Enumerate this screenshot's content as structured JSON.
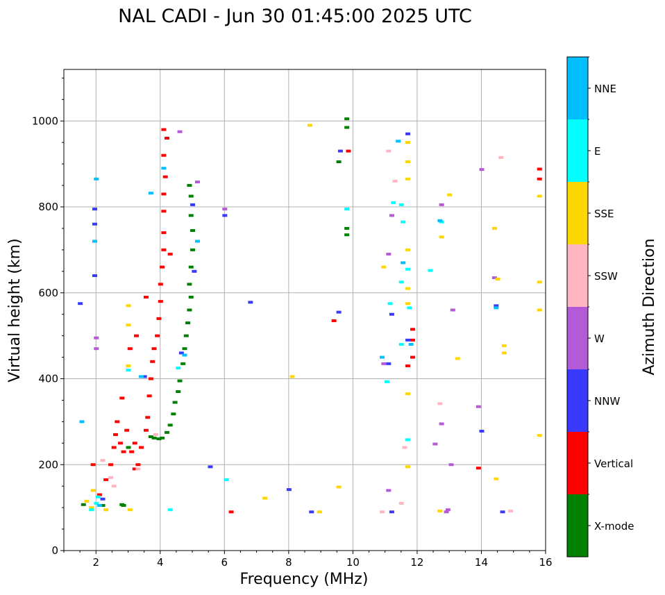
{
  "chart_data": {
    "type": "scatter",
    "title": "NAL CADI - Jun 30 01:45:00 2025 UTC",
    "xlabel": "Frequency (MHz)",
    "ylabel": "Virtual height (km)",
    "xlim": [
      1,
      16
    ],
    "ylim": [
      0,
      1120
    ],
    "xticks": [
      2,
      4,
      6,
      8,
      10,
      12,
      14,
      16
    ],
    "yticks": [
      0,
      200,
      400,
      600,
      800,
      1000
    ],
    "grid": true,
    "colorbar": {
      "label": "Azimuth Direction",
      "categories": [
        {
          "name": "X-mode",
          "color": "#008000"
        },
        {
          "name": "Vertical",
          "color": "#ff0000"
        },
        {
          "name": "NNW",
          "color": "#3a3aff"
        },
        {
          "name": "W",
          "color": "#b45ad6"
        },
        {
          "name": "SSW",
          "color": "#ffb6c1"
        },
        {
          "name": "SSE",
          "color": "#ffd700"
        },
        {
          "name": "E",
          "color": "#00ffff"
        },
        {
          "name": "NNE",
          "color": "#00bfff"
        }
      ]
    },
    "series": [
      {
        "name": "X-mode",
        "points": [
          [
            1.6,
            107
          ],
          [
            2.2,
            105
          ],
          [
            2.8,
            107
          ],
          [
            2.85,
            105
          ],
          [
            3.7,
            265
          ],
          [
            3.8,
            262
          ],
          [
            3.95,
            260
          ],
          [
            4.05,
            262
          ],
          [
            4.2,
            275
          ],
          [
            4.3,
            292
          ],
          [
            4.4,
            318
          ],
          [
            4.45,
            345
          ],
          [
            4.55,
            370
          ],
          [
            4.6,
            395
          ],
          [
            4.7,
            435
          ],
          [
            4.75,
            470
          ],
          [
            4.8,
            500
          ],
          [
            4.85,
            530
          ],
          [
            4.9,
            560
          ],
          [
            4.95,
            590
          ],
          [
            4.9,
            620
          ],
          [
            4.95,
            660
          ],
          [
            5.0,
            700
          ],
          [
            5.0,
            745
          ],
          [
            4.95,
            780
          ],
          [
            4.95,
            825
          ],
          [
            4.9,
            850
          ],
          [
            3.0,
            240
          ],
          [
            9.8,
            735
          ],
          [
            9.8,
            750
          ],
          [
            9.8,
            985
          ],
          [
            9.8,
            1005
          ],
          [
            9.55,
            905
          ]
        ]
      },
      {
        "name": "Vertical",
        "points": [
          [
            1.9,
            200
          ],
          [
            2.1,
            130
          ],
          [
            2.3,
            165
          ],
          [
            2.45,
            200
          ],
          [
            2.55,
            240
          ],
          [
            2.6,
            270
          ],
          [
            2.65,
            300
          ],
          [
            2.75,
            250
          ],
          [
            2.85,
            230
          ],
          [
            2.95,
            280
          ],
          [
            3.1,
            230
          ],
          [
            3.2,
            250
          ],
          [
            3.3,
            200
          ],
          [
            3.4,
            240
          ],
          [
            3.55,
            280
          ],
          [
            3.6,
            310
          ],
          [
            3.65,
            360
          ],
          [
            3.7,
            400
          ],
          [
            3.75,
            440
          ],
          [
            3.8,
            470
          ],
          [
            3.9,
            500
          ],
          [
            3.95,
            540
          ],
          [
            4.0,
            580
          ],
          [
            4.0,
            620
          ],
          [
            4.05,
            660
          ],
          [
            4.1,
            700
          ],
          [
            4.3,
            690
          ],
          [
            4.1,
            740
          ],
          [
            4.1,
            790
          ],
          [
            4.1,
            830
          ],
          [
            4.15,
            870
          ],
          [
            4.1,
            920
          ],
          [
            4.1,
            980
          ],
          [
            4.2,
            960
          ],
          [
            3.55,
            590
          ],
          [
            3.25,
            500
          ],
          [
            2.8,
            355
          ],
          [
            3.2,
            190
          ],
          [
            3.05,
            470
          ],
          [
            11.85,
            450
          ],
          [
            11.85,
            490
          ],
          [
            11.85,
            515
          ],
          [
            9.4,
            535
          ],
          [
            9.85,
            930
          ],
          [
            15.8,
            865
          ],
          [
            15.8,
            888
          ],
          [
            6.2,
            90
          ],
          [
            13.9,
            192
          ],
          [
            11.7,
            430
          ]
        ]
      },
      {
        "name": "NNW",
        "points": [
          [
            1.5,
            575
          ],
          [
            1.95,
            640
          ],
          [
            1.95,
            760
          ],
          [
            1.95,
            795
          ],
          [
            2.2,
            120
          ],
          [
            3.5,
            405
          ],
          [
            4.65,
            460
          ],
          [
            5.05,
            650
          ],
          [
            5.0,
            805
          ],
          [
            5.55,
            195
          ],
          [
            6.0,
            780
          ],
          [
            6.8,
            578
          ],
          [
            8.0,
            142
          ],
          [
            8.7,
            90
          ],
          [
            9.55,
            555
          ],
          [
            9.6,
            930
          ],
          [
            11.2,
            550
          ],
          [
            11.7,
            490
          ],
          [
            11.7,
            970
          ],
          [
            11.2,
            90
          ],
          [
            14.0,
            278
          ],
          [
            14.65,
            90
          ],
          [
            14.45,
            570
          ],
          [
            11.1,
            435
          ]
        ]
      },
      {
        "name": "W",
        "points": [
          [
            2.0,
            495
          ],
          [
            2.0,
            470
          ],
          [
            4.6,
            975
          ],
          [
            5.15,
            858
          ],
          [
            6.0,
            795
          ],
          [
            10.95,
            435
          ],
          [
            11.1,
            690
          ],
          [
            11.2,
            780
          ],
          [
            12.55,
            248
          ],
          [
            12.75,
            295
          ],
          [
            12.75,
            805
          ],
          [
            12.9,
            90
          ],
          [
            12.95,
            95
          ],
          [
            13.05,
            200
          ],
          [
            13.9,
            335
          ],
          [
            14.4,
            635
          ],
          [
            14.0,
            887
          ],
          [
            11.1,
            140
          ],
          [
            13.1,
            560
          ]
        ]
      },
      {
        "name": "SSW",
        "points": [
          [
            2.2,
            210
          ],
          [
            2.45,
            170
          ],
          [
            2.55,
            150
          ],
          [
            3.3,
            190
          ],
          [
            3.85,
            270
          ],
          [
            11.1,
            930
          ],
          [
            11.3,
            860
          ],
          [
            12.7,
            342
          ],
          [
            14.9,
            92
          ],
          [
            14.6,
            915
          ],
          [
            10.9,
            90
          ],
          [
            11.5,
            110
          ],
          [
            11.6,
            240
          ]
        ]
      },
      {
        "name": "SSE",
        "points": [
          [
            1.7,
            115
          ],
          [
            1.85,
            100
          ],
          [
            1.9,
            140
          ],
          [
            2.3,
            95
          ],
          [
            3.0,
            570
          ],
          [
            3.0,
            525
          ],
          [
            3.0,
            430
          ],
          [
            3.05,
            95
          ],
          [
            7.25,
            122
          ],
          [
            8.1,
            405
          ],
          [
            8.65,
            990
          ],
          [
            8.95,
            90
          ],
          [
            9.55,
            148
          ],
          [
            10.95,
            660
          ],
          [
            11.7,
            195
          ],
          [
            11.7,
            365
          ],
          [
            11.7,
            700
          ],
          [
            11.7,
            865
          ],
          [
            11.7,
            905
          ],
          [
            11.7,
            950
          ],
          [
            12.75,
            730
          ],
          [
            12.7,
            92
          ],
          [
            13.0,
            828
          ],
          [
            13.25,
            447
          ],
          [
            14.4,
            750
          ],
          [
            14.45,
            167
          ],
          [
            14.5,
            632
          ],
          [
            14.7,
            460
          ],
          [
            14.7,
            477
          ],
          [
            15.8,
            825
          ],
          [
            15.8,
            625
          ],
          [
            15.8,
            560
          ],
          [
            15.8,
            268
          ],
          [
            11.7,
            610
          ],
          [
            11.7,
            575
          ]
        ]
      },
      {
        "name": "E",
        "points": [
          [
            1.85,
            95
          ],
          [
            2.0,
            110
          ],
          [
            2.05,
            125
          ],
          [
            3.0,
            420
          ],
          [
            4.3,
            95
          ],
          [
            4.55,
            425
          ],
          [
            6.05,
            165
          ],
          [
            11.25,
            810
          ],
          [
            11.5,
            805
          ],
          [
            11.55,
            765
          ],
          [
            11.7,
            655
          ],
          [
            11.75,
            565
          ],
          [
            11.5,
            480
          ],
          [
            11.15,
            575
          ],
          [
            12.4,
            652
          ],
          [
            12.75,
            765
          ],
          [
            9.8,
            795
          ],
          [
            11.7,
            258
          ],
          [
            11.05,
            393
          ],
          [
            11.5,
            625
          ]
        ]
      },
      {
        "name": "NNE",
        "points": [
          [
            1.55,
            300
          ],
          [
            1.95,
            720
          ],
          [
            2.0,
            865
          ],
          [
            2.1,
            105
          ],
          [
            3.4,
            405
          ],
          [
            3.7,
            832
          ],
          [
            4.1,
            890
          ],
          [
            4.75,
            455
          ],
          [
            5.15,
            720
          ],
          [
            10.9,
            450
          ],
          [
            11.4,
            953
          ],
          [
            11.8,
            480
          ],
          [
            12.7,
            768
          ],
          [
            14.45,
            565
          ],
          [
            11.55,
            670
          ]
        ]
      }
    ]
  }
}
